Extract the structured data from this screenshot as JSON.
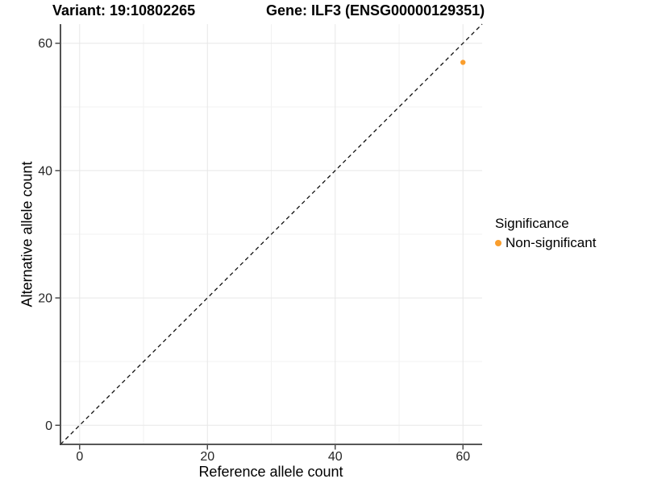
{
  "titles": {
    "variant": "Variant: 19:10802265",
    "gene": "Gene: ILF3 (ENSG00000129351)"
  },
  "legend": {
    "title": "Significance",
    "items": [
      {
        "label": "Non-significant",
        "color": "#FA9E2D"
      }
    ]
  },
  "chart_data": {
    "type": "scatter",
    "title": "Variant: 19:10802265   Gene: ILF3 (ENSG00000129351)",
    "xlabel": "Reference allele count",
    "ylabel": "Alternative allele count",
    "xlim": [
      -3,
      63
    ],
    "ylim": [
      -3,
      63
    ],
    "x_ticks": [
      0,
      20,
      40,
      60
    ],
    "y_ticks": [
      0,
      20,
      40,
      60
    ],
    "x_minor_ticks": [
      10,
      30,
      50
    ],
    "y_minor_ticks": [
      10,
      30,
      50
    ],
    "grid": true,
    "legend_position": "right",
    "series": [
      {
        "name": "Non-significant",
        "color": "#FA9E2D",
        "points": [
          {
            "x": 60,
            "y": 57
          }
        ]
      }
    ],
    "reference_line": {
      "name": "identity-line",
      "style": "dashed",
      "color": "#111111",
      "from": [
        -3,
        -3
      ],
      "to": [
        63,
        63
      ]
    }
  },
  "style": {
    "background": "#ffffff",
    "point_color": "#FA9E2D",
    "point_radius": 3.2,
    "axis_line_color": "#3f3f3f",
    "tick_color": "#3f3f3f",
    "tick_label_color": "#262626",
    "grid_major_color": "#e7e7e7",
    "grid_minor_color": "#f2f2f2"
  }
}
